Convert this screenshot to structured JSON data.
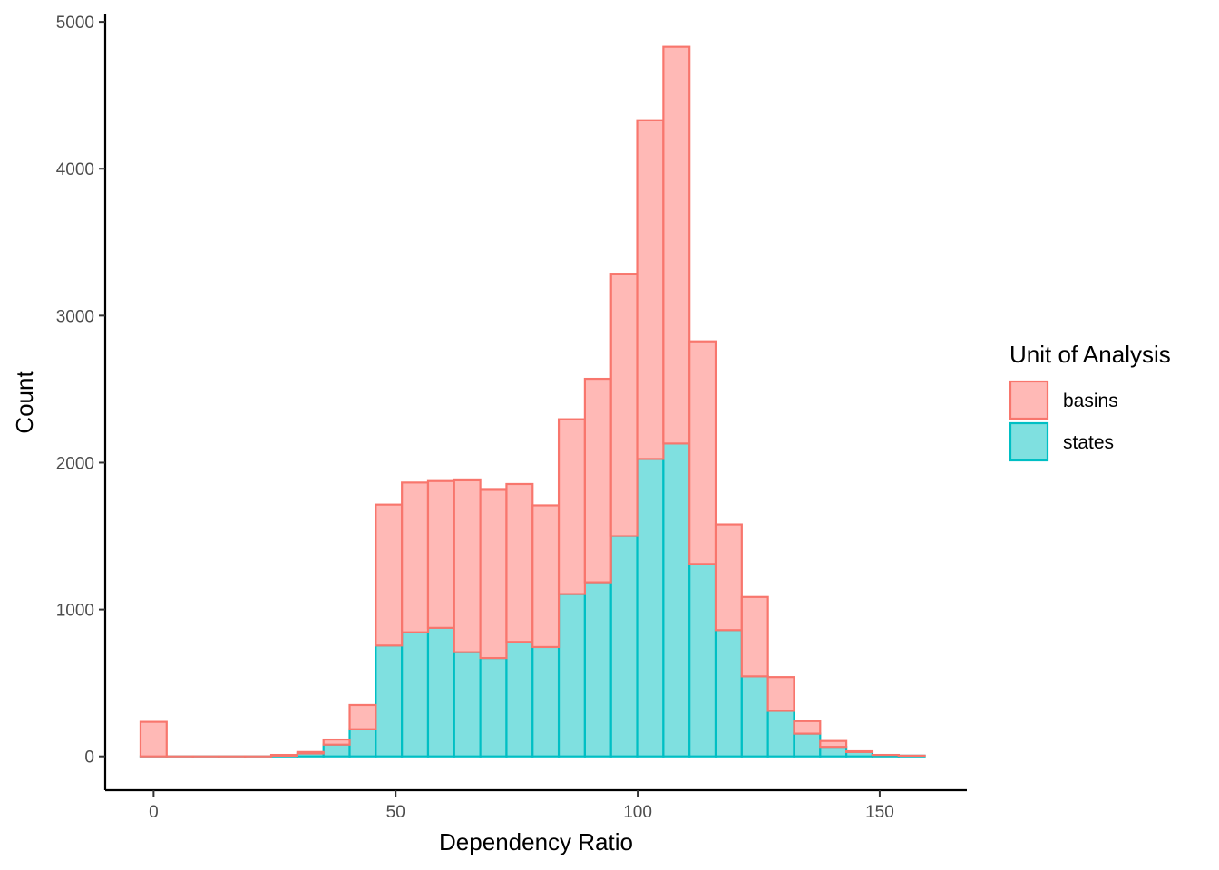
{
  "chart_data": {
    "type": "histogram",
    "title": "",
    "xlabel": "Dependency Ratio",
    "ylabel": "Count",
    "xlim": [
      -10,
      168
    ],
    "ylim": [
      -230,
      5050
    ],
    "x_ticks": [
      0,
      50,
      100,
      150
    ],
    "x_tick_labels": [
      "0",
      "50",
      "100",
      "150"
    ],
    "y_ticks": [
      0,
      1000,
      2000,
      3000,
      4000,
      5000
    ],
    "y_tick_labels": [
      "0",
      "1000",
      "2000",
      "3000",
      "4000",
      "5000"
    ],
    "bin_width": 5.4,
    "bin_centers": [
      0,
      5.4,
      10.8,
      16.2,
      21.6,
      27.0,
      32.4,
      37.8,
      43.2,
      48.6,
      54.0,
      59.4,
      64.8,
      70.2,
      75.6,
      81.0,
      86.4,
      91.8,
      97.2,
      102.6,
      108.0,
      113.4,
      118.8,
      124.2,
      129.6,
      135.0,
      140.4,
      145.8,
      151.2,
      156.6
    ],
    "position": "stack",
    "grid": false,
    "legend": {
      "title": "Unit of Analysis",
      "position": "right"
    },
    "series": [
      {
        "name": "states",
        "fill": "#7fe0e0",
        "stroke": "#00bfc4",
        "values": [
          0,
          0,
          0,
          0,
          0,
          5,
          20,
          80,
          185,
          755,
          845,
          875,
          710,
          670,
          780,
          745,
          1105,
          1185,
          1500,
          2025,
          2130,
          1310,
          860,
          545,
          310,
          155,
          65,
          30,
          10,
          5
        ]
      },
      {
        "name": "basins",
        "fill": "#ffb9b6",
        "stroke": "#f8766d",
        "values": [
          235,
          0,
          0,
          0,
          0,
          5,
          10,
          35,
          165,
          960,
          1020,
          1000,
          1170,
          1145,
          1075,
          965,
          1190,
          1385,
          1785,
          2305,
          2700,
          1515,
          720,
          540,
          230,
          85,
          40,
          5,
          0,
          0
        ]
      }
    ]
  }
}
